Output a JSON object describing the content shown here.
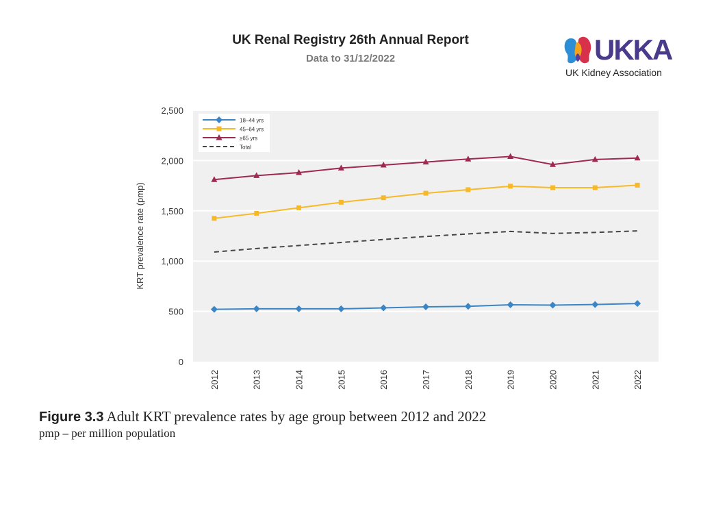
{
  "header": {
    "title": "UK Renal Registry 26th Annual Report",
    "subtitle": "Data to 31/12/2022"
  },
  "logo": {
    "word": "UKKA",
    "tagline": "UK Kidney Association",
    "colors": {
      "blue": "#2c8ed6",
      "orange": "#f2a31b",
      "red": "#d8314b",
      "purple": "#5a3a9c",
      "text": "#4a3a8c"
    }
  },
  "caption": {
    "label": "Figure 3.3",
    "text": "Adult KRT prevalence rates by age group between 2012 and 2022",
    "note": "pmp – per million population"
  },
  "chart_data": {
    "type": "line",
    "title": "",
    "xlabel": "",
    "ylabel": "KRT prevalence rate (pmp)",
    "ylim": [
      0,
      2500
    ],
    "yticks": [
      0,
      500,
      1000,
      1500,
      2000,
      2500
    ],
    "ytick_labels": [
      "0",
      "500",
      "1,000",
      "1,500",
      "2,000",
      "2,500"
    ],
    "x": [
      "2012",
      "2013",
      "2014",
      "2015",
      "2016",
      "2017",
      "2018",
      "2019",
      "2020",
      "2021",
      "2022"
    ],
    "legend_position": "top-left",
    "grid": true,
    "series": [
      {
        "name": "18–44 yrs",
        "color": "#3a85c6",
        "marker": "diamond",
        "dash": false,
        "values": [
          520,
          525,
          525,
          525,
          535,
          545,
          550,
          565,
          562,
          568,
          578
        ]
      },
      {
        "name": "45–64 yrs",
        "color": "#f7b928",
        "marker": "square",
        "dash": false,
        "values": [
          1425,
          1475,
          1530,
          1585,
          1630,
          1675,
          1710,
          1745,
          1730,
          1730,
          1755
        ]
      },
      {
        "name": "≥65 yrs",
        "color": "#a0294f",
        "marker": "triangle",
        "dash": false,
        "values": [
          1810,
          1850,
          1880,
          1925,
          1955,
          1985,
          2015,
          2040,
          1960,
          2010,
          2025
        ]
      },
      {
        "name": "Total",
        "color": "#444444",
        "marker": "none",
        "dash": true,
        "values": [
          1090,
          1125,
          1155,
          1185,
          1215,
          1245,
          1270,
          1295,
          1275,
          1285,
          1300
        ]
      }
    ]
  }
}
